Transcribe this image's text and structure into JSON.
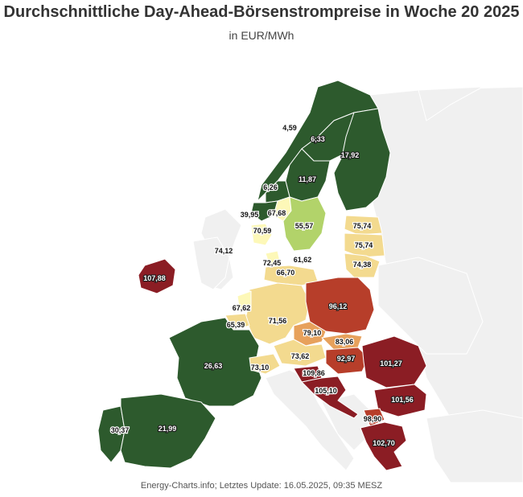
{
  "header": {
    "title": "Durchschnittliche Day-Ahead-Börsenstrompreise in Woche 20 2025",
    "subtitle": "in EUR/MWh"
  },
  "footer": {
    "credit": "Energy-Charts.info; Letztes Update: 16.05.2025, 09:35 MESZ"
  },
  "colors": {
    "dark_green": "#2d5a2d",
    "light_green": "#b2d36a",
    "pale_yellow": "#fdf8b8",
    "sand": "#f3da8f",
    "orange": "#e7a15c",
    "red": "#b73e2a",
    "dark_red": "#8b1d24",
    "grey_land": "#f0f0f0"
  },
  "regions": [
    {
      "id": "no-north",
      "value": "4,59"
    },
    {
      "id": "se-north",
      "value": "6,33"
    },
    {
      "id": "fi",
      "value": "17,92"
    },
    {
      "id": "se-mid",
      "value": "11,87"
    },
    {
      "id": "no-west",
      "value": "6,26"
    },
    {
      "id": "no-south",
      "value": "39,95"
    },
    {
      "id": "no-southeast",
      "value": "67,68"
    },
    {
      "id": "dk-west",
      "value": "70,59"
    },
    {
      "id": "se-south",
      "value": "55,57"
    },
    {
      "id": "ee",
      "value": "75,74"
    },
    {
      "id": "lv",
      "value": "75,74"
    },
    {
      "id": "lt",
      "value": "74,38"
    },
    {
      "id": "gb",
      "value": "74,12"
    },
    {
      "id": "dk-east",
      "value": "72,45"
    },
    {
      "id": "de-north",
      "value": "61,62"
    },
    {
      "id": "de-northeast",
      "value": "66,70"
    },
    {
      "id": "ie",
      "value": "107,88"
    },
    {
      "id": "pl",
      "value": "96,12"
    },
    {
      "id": "nl",
      "value": "67,62"
    },
    {
      "id": "de",
      "value": "71,56"
    },
    {
      "id": "be",
      "value": "65,39"
    },
    {
      "id": "cz",
      "value": "79,10"
    },
    {
      "id": "sk",
      "value": "83,06"
    },
    {
      "id": "fr",
      "value": "26,63"
    },
    {
      "id": "ch",
      "value": "73,10"
    },
    {
      "id": "at",
      "value": "73,62"
    },
    {
      "id": "hu",
      "value": "92,97"
    },
    {
      "id": "ro",
      "value": "101,27"
    },
    {
      "id": "si",
      "value": "109,86"
    },
    {
      "id": "hr",
      "value": "105,10"
    },
    {
      "id": "bg",
      "value": "101,56"
    },
    {
      "id": "pt",
      "value": "30,37"
    },
    {
      "id": "es",
      "value": "21,99"
    },
    {
      "id": "mk",
      "value": "98,90"
    },
    {
      "id": "gr",
      "value": "102,70"
    }
  ]
}
